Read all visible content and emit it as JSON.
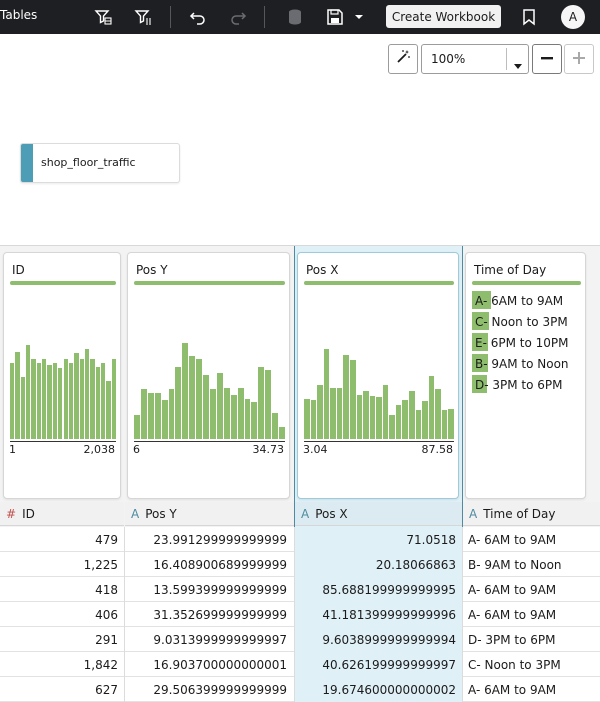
{
  "app": {
    "title": "Tables",
    "create_workbook_label": "Create Workbook",
    "user_initial": "A"
  },
  "toolbar": {
    "icons": [
      "filter-table-icon",
      "filter-column-icon",
      "undo-icon",
      "redo-icon",
      "database-icon",
      "save-icon",
      "save-menu-caret-icon",
      "bookmark-icon"
    ]
  },
  "zoom": {
    "value": "100%"
  },
  "source_node": {
    "label": "shop_floor_traffic",
    "accent": "#4d9db6"
  },
  "colors": {
    "bar": "#8ebd6d",
    "selected": "#dff0f7",
    "topbar": "#1e1f22"
  },
  "profiles": [
    {
      "title": "ID",
      "min": "1",
      "max": "2,038",
      "bars": [
        0.76,
        0.87,
        0.62,
        0.94,
        0.8,
        0.76,
        0.8,
        0.74,
        0.76,
        0.71,
        0.8,
        0.76,
        0.86,
        0.8,
        0.9,
        0.8,
        0.72,
        0.76,
        0.58,
        0.8
      ]
    },
    {
      "title": "Pos Y",
      "min": "6",
      "max": "34.73",
      "bars": [
        0.24,
        0.5,
        0.46,
        0.46,
        0.39,
        0.5,
        0.72,
        0.96,
        0.83,
        0.8,
        0.64,
        0.5,
        0.66,
        0.51,
        0.44,
        0.51,
        0.4,
        0.37,
        0.72,
        0.69,
        0.26,
        0.12
      ]
    },
    {
      "title": "Pos X",
      "min": "3.04",
      "max": "87.58",
      "bars": [
        0.4,
        0.39,
        0.54,
        0.9,
        0.51,
        0.51,
        0.84,
        0.79,
        0.44,
        0.48,
        0.43,
        0.42,
        0.54,
        0.24,
        0.34,
        0.39,
        0.48,
        0.29,
        0.38,
        0.63,
        0.5,
        0.29,
        0.3
      ]
    },
    {
      "title": "Time of Day",
      "categories": [
        {
          "label": "A- 6AM to 9AM",
          "share": 0.8
        },
        {
          "label": "C- Noon to 3PM",
          "share": 0.7
        },
        {
          "label": "E- 6PM to 10PM",
          "share": 0.68
        },
        {
          "label": "B- 9AM to Noon",
          "share": 0.66
        },
        {
          "label": "D- 3PM to 6PM",
          "share": 0.62
        }
      ]
    }
  ],
  "table": {
    "columns": [
      {
        "type_icon": "#",
        "name": "ID"
      },
      {
        "type_icon": "A",
        "name": "Pos Y"
      },
      {
        "type_icon": "A",
        "name": "Pos X"
      },
      {
        "type_icon": "A",
        "name": "Time of Day"
      }
    ],
    "rows": [
      [
        "479",
        "23.991299999999999",
        "71.0518",
        "A- 6AM to 9AM"
      ],
      [
        "1,225",
        "16.408900689999999",
        "20.18066863",
        "B- 9AM to Noon"
      ],
      [
        "418",
        "13.599399999999999",
        "85.688199999999995",
        "A- 6AM to 9AM"
      ],
      [
        "406",
        "31.352699999999999",
        "41.181399999999996",
        "A- 6AM to 9AM"
      ],
      [
        "291",
        "9.0313999999999997",
        "9.6038999999999994",
        "D- 3PM to 6PM"
      ],
      [
        "1,842",
        "16.903700000000001",
        "40.626199999999997",
        "C- Noon to 3PM"
      ],
      [
        "627",
        "29.506399999999999",
        "19.674600000000002",
        "A- 6AM to 9AM"
      ]
    ]
  }
}
